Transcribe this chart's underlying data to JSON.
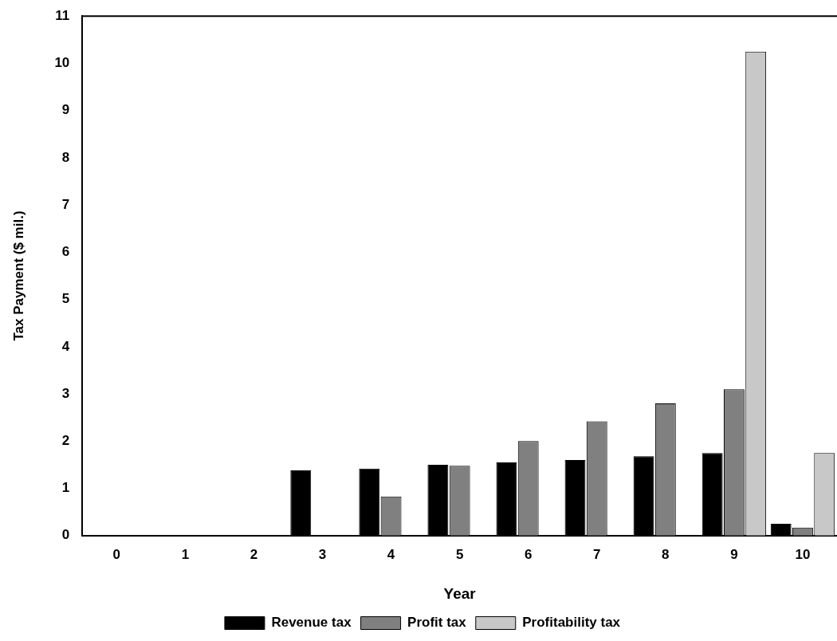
{
  "chart_data": {
    "type": "bar",
    "xlabel": "Year",
    "ylabel": "Tax Payment ($ mil.)",
    "categories": [
      "0",
      "1",
      "2",
      "3",
      "4",
      "5",
      "6",
      "7",
      "8",
      "9",
      "10"
    ],
    "series": [
      {
        "name": "Revenue tax",
        "color": "#000000",
        "values": [
          0,
          0,
          0,
          1.38,
          1.42,
          1.5,
          1.55,
          1.6,
          1.68,
          1.75,
          0.25
        ]
      },
      {
        "name": "Profit tax",
        "color": "#808080",
        "values": [
          0,
          0,
          0,
          0,
          0.83,
          1.48,
          2.0,
          2.42,
          2.8,
          3.1,
          0.17
        ]
      },
      {
        "name": "Profitability tax",
        "color": "#c8c8c8",
        "values": [
          0,
          0,
          0,
          0,
          0,
          0,
          0,
          0,
          0,
          10.25,
          1.75
        ]
      }
    ],
    "ylim": [
      0,
      11
    ],
    "yticks": [
      0,
      1,
      2,
      3,
      4,
      5,
      6,
      7,
      8,
      9,
      10,
      11
    ],
    "grid": false,
    "legend": "bottom"
  }
}
